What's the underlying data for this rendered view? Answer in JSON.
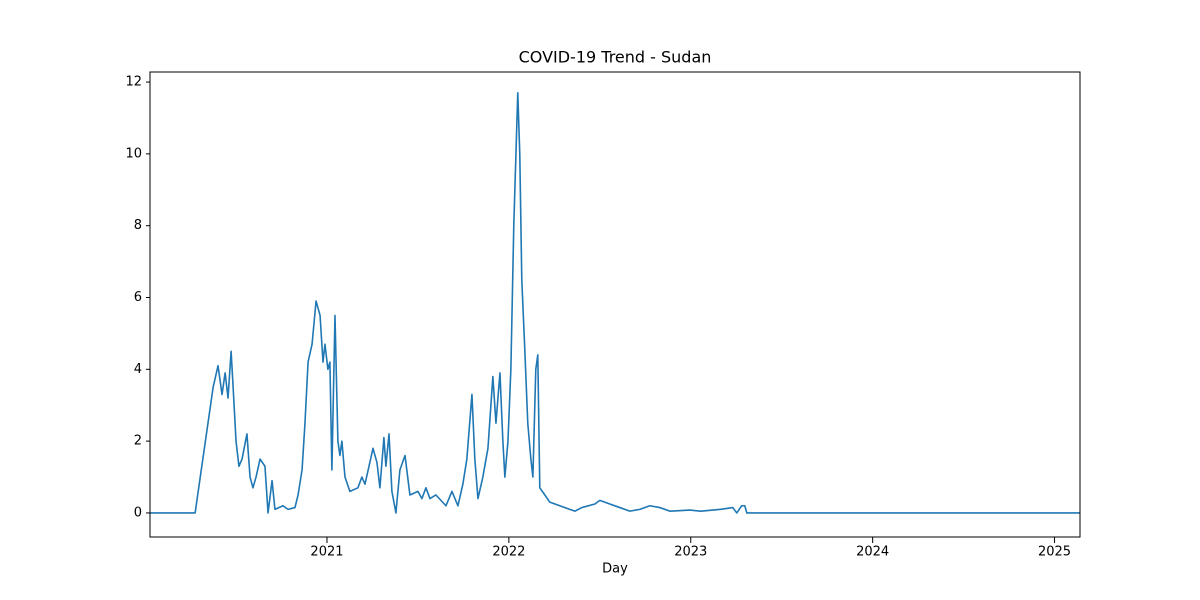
{
  "chart_data": {
    "type": "line",
    "title": "COVID-19 Trend - Sudan",
    "x_label": "Day",
    "xlim": [
      2020.027,
      2025.14
    ],
    "xticks": [
      2021,
      2022,
      2023,
      2024,
      2025
    ],
    "ylim": [
      -0.67,
      12.28
    ],
    "yticks": [
      0,
      2,
      4,
      6,
      8,
      10,
      12
    ],
    "grid": false,
    "series": [
      {
        "color": "#1f77b4",
        "x": [
          2020.027,
          2020.275,
          2020.374,
          2020.401,
          2020.423,
          2020.44,
          2020.456,
          2020.473,
          2020.484,
          2020.5,
          2020.516,
          2020.533,
          2020.56,
          2020.577,
          2020.593,
          2020.61,
          2020.632,
          2020.659,
          2020.676,
          2020.698,
          2020.714,
          2020.758,
          2020.786,
          2020.824,
          2020.841,
          2020.863,
          2020.879,
          2020.896,
          2020.918,
          2020.94,
          2020.962,
          2020.978,
          2020.989,
          2021.005,
          2021.016,
          2021.027,
          2021.044,
          2021.06,
          2021.071,
          2021.082,
          2021.099,
          2021.126,
          2021.17,
          2021.192,
          2021.209,
          2021.253,
          2021.275,
          2021.291,
          2021.313,
          2021.324,
          2021.341,
          2021.357,
          2021.379,
          2021.401,
          2021.429,
          2021.456,
          2021.5,
          2021.522,
          2021.544,
          2021.566,
          2021.599,
          2021.654,
          2021.687,
          2021.72,
          2021.747,
          2021.769,
          2021.797,
          2021.813,
          2021.83,
          2021.857,
          2021.885,
          2021.912,
          2021.929,
          2021.951,
          2021.967,
          2021.978,
          2021.995,
          2022.011,
          2022.027,
          2022.049,
          2022.06,
          2022.071,
          2022.088,
          2022.104,
          2022.121,
          2022.132,
          2022.148,
          2022.159,
          2022.17,
          2022.198,
          2022.225,
          2022.28,
          2022.335,
          2022.363,
          2022.401,
          2022.473,
          2022.5,
          2022.555,
          2022.61,
          2022.665,
          2022.72,
          2022.775,
          2022.83,
          2022.885,
          2022.995,
          2023.055,
          2023.165,
          2023.231,
          2023.253,
          2023.28,
          2023.297,
          2023.308,
          2025.14
        ],
        "values": [
          0,
          0,
          3.5,
          4.1,
          3.3,
          3.9,
          3.2,
          4.5,
          3.5,
          2.0,
          1.3,
          1.5,
          2.2,
          1.0,
          0.7,
          1.0,
          1.5,
          1.3,
          0,
          0.9,
          0.1,
          0.2,
          0.1,
          0.15,
          0.5,
          1.2,
          2.5,
          4.2,
          4.7,
          5.9,
          5.5,
          4.2,
          4.7,
          4.0,
          4.2,
          1.2,
          5.5,
          2.0,
          1.6,
          2.0,
          1.0,
          0.6,
          0.7,
          1.0,
          0.8,
          1.8,
          1.4,
          0.7,
          2.1,
          1.3,
          2.2,
          0.6,
          0,
          1.2,
          1.6,
          0.5,
          0.6,
          0.4,
          0.7,
          0.4,
          0.5,
          0.2,
          0.6,
          0.2,
          0.8,
          1.5,
          3.3,
          1.5,
          0.4,
          1.0,
          1.8,
          3.8,
          2.5,
          3.9,
          2.0,
          1.0,
          2.0,
          4.0,
          8.0,
          11.7,
          10.0,
          6.5,
          4.5,
          2.5,
          1.5,
          1.0,
          4.0,
          4.4,
          0.7,
          0.5,
          0.3,
          0.2,
          0.1,
          0.05,
          0.15,
          0.25,
          0.35,
          0.25,
          0.15,
          0.05,
          0.1,
          0.2,
          0.15,
          0.05,
          0.08,
          0.05,
          0.1,
          0.15,
          0,
          0.2,
          0.2,
          0,
          0
        ]
      }
    ]
  }
}
